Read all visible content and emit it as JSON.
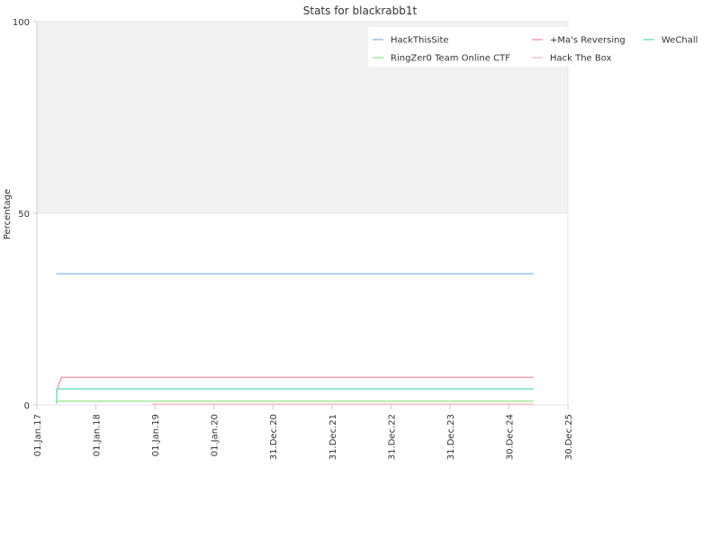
{
  "chart_data": {
    "type": "line",
    "title": "Stats for blackrabb1t",
    "xlabel": "",
    "ylabel": "Percentage",
    "xlim": [
      "2017-01-01",
      "2025-12-30"
    ],
    "ylim": [
      0,
      100
    ],
    "y_ticks": [
      0,
      50,
      100
    ],
    "y_tick_labels": [
      "0",
      "50",
      "100"
    ],
    "x_ticks": [
      "2017-01-01",
      "2018-01-01",
      "2019-01-01",
      "2020-01-01",
      "2020-12-31",
      "2021-12-31",
      "2022-12-31",
      "2023-12-31",
      "2024-12-30",
      "2025-12-30"
    ],
    "x_tick_labels": [
      "01.Jan.17",
      "01.Jan.18",
      "01.Jan.19",
      "01.Jan.20",
      "31.Dec.20",
      "31.Dec.21",
      "31.Dec.22",
      "31.Dec.23",
      "30.Dec.24",
      "30.Dec.25"
    ],
    "grid": "horizontal",
    "legend_position": "top-right",
    "background_band": {
      "from": 50,
      "to": 100,
      "color": "#f2f2f2"
    },
    "series": [
      {
        "name": "HackThisSite",
        "color": "#9fc5e8",
        "points": [
          [
            "2017-05-01",
            34.2
          ],
          [
            "2025-06-01",
            34.2
          ]
        ]
      },
      {
        "name": "+Ma's Reversing",
        "color": "#f4a3b8",
        "points": [
          [
            "2017-05-01",
            3.5
          ],
          [
            "2017-06-01",
            7.2
          ],
          [
            "2025-06-01",
            7.2
          ]
        ]
      },
      {
        "name": "WeChall",
        "color": "#7ee3c7",
        "points": [
          [
            "2017-05-01",
            0.5
          ],
          [
            "2017-05-05",
            4.2
          ],
          [
            "2025-06-01",
            4.2
          ]
        ]
      },
      {
        "name": "RingZer0 Team Online CTF",
        "color": "#a6e8a0",
        "points": [
          [
            "2017-05-01",
            0.3
          ],
          [
            "2017-05-08",
            1.0
          ],
          [
            "2025-06-01",
            1.0
          ]
        ]
      },
      {
        "name": "Hack The Box",
        "color": "#f7c6c6",
        "points": [
          [
            "2018-12-15",
            0.2
          ],
          [
            "2025-06-01",
            0.2
          ]
        ]
      }
    ]
  }
}
